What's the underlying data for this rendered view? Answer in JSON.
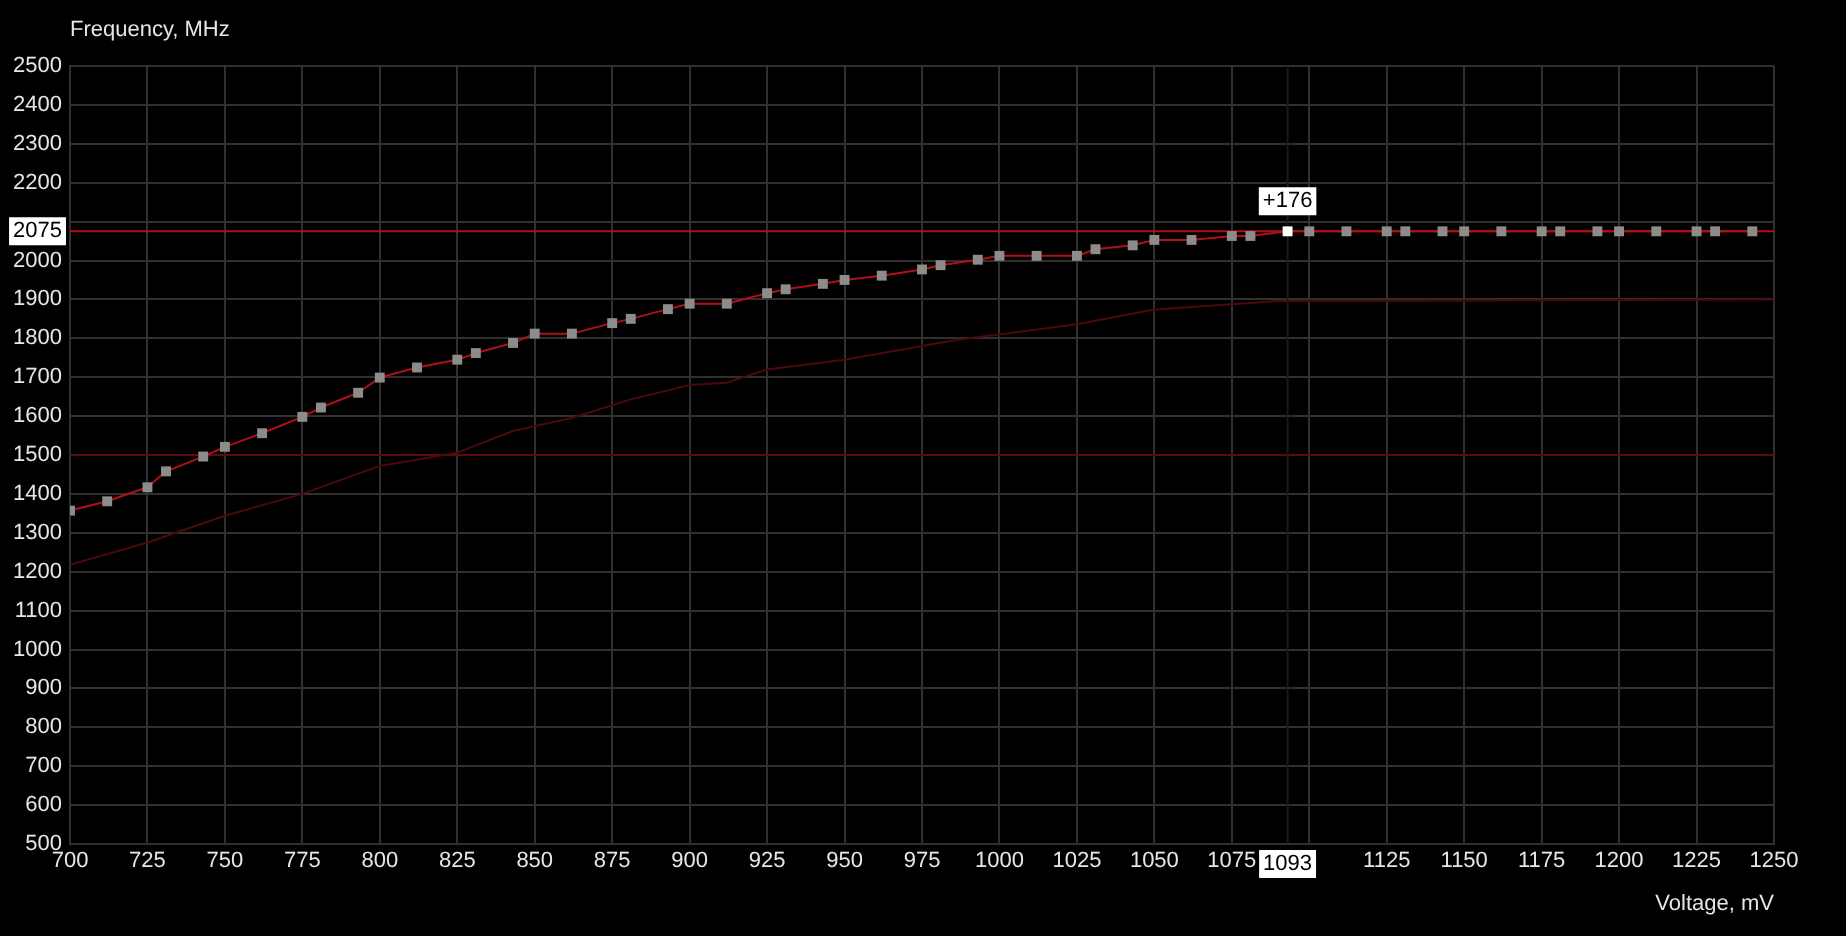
{
  "chart_data": {
    "type": "line",
    "xlabel": "Voltage, mV",
    "ylabel": "Frequency, MHz",
    "xlim": [
      700,
      1250
    ],
    "xticks": [
      700,
      725,
      750,
      775,
      800,
      825,
      850,
      875,
      900,
      925,
      950,
      975,
      1000,
      1025,
      1050,
      1075,
      {
        "value": 1100,
        "label": null
      },
      1125,
      1150,
      1175,
      1200,
      1225,
      1250
    ],
    "ylim": [
      500,
      2500
    ],
    "yticks": [
      500,
      600,
      700,
      800,
      900,
      1000,
      1100,
      1200,
      1300,
      1400,
      1500,
      1600,
      1700,
      1800,
      1900,
      2000,
      {
        "value": 2100,
        "label": null
      },
      2200,
      2300,
      2400,
      2500
    ],
    "grid": true,
    "legend": false,
    "series": [
      {
        "color": "#4a0a0c",
        "marker": "none",
        "x": [
          700,
          725,
          750,
          775,
          800,
          825,
          843,
          862,
          881,
          900,
          912,
          925,
          950,
          975,
          987,
          1025,
          1050,
          1090,
          1250
        ],
        "values": [
          1218,
          1275,
          1344,
          1400,
          1472,
          1506,
          1562,
          1595,
          1643,
          1680,
          1686,
          1720,
          1745,
          1780,
          1797,
          1836,
          1874,
          1896,
          1900
        ]
      },
      {
        "color": "#b01018",
        "marker": "square",
        "x": [
          700,
          712,
          725,
          731,
          743,
          750,
          762,
          775,
          781,
          793,
          800,
          812,
          825,
          831,
          843,
          850,
          862,
          875,
          881,
          893,
          900,
          912,
          925,
          931,
          943,
          950,
          962,
          975,
          981,
          993,
          1000,
          1012,
          1025,
          1031,
          1043,
          1050,
          1062,
          1075,
          1081,
          1093,
          1100,
          1112,
          1125,
          1131,
          1143,
          1150,
          1162,
          1175,
          1181,
          1193,
          1200,
          1212,
          1225,
          1231,
          1243
        ],
        "values": [
          1357,
          1381,
          1417,
          1458,
          1496,
          1521,
          1556,
          1598,
          1622,
          1660,
          1699,
          1725,
          1745,
          1762,
          1788,
          1812,
          1812,
          1839,
          1850,
          1875,
          1889,
          1889,
          1916,
          1926,
          1940,
          1950,
          1961,
          1977,
          1988,
          2002,
          2012,
          2012,
          2012,
          2029,
          2039,
          2053,
          2053,
          2063,
          2063,
          2075,
          2075,
          2075,
          2075,
          2075,
          2075,
          2075,
          2075,
          2075,
          2075,
          2075,
          2075,
          2075,
          2075,
          2075,
          2075
        ]
      }
    ],
    "ref_lines": [
      {
        "axis": "y",
        "value": 1500,
        "color": "#5a0c0e"
      },
      {
        "axis": "y",
        "value": 2075,
        "label": "2075",
        "color": "#b01018"
      },
      {
        "axis": "x",
        "value": 1093,
        "label": "1093",
        "color": "#1a1a1a"
      }
    ],
    "annotations": [
      {
        "text": "+176",
        "x": 1093,
        "y": 2075
      }
    ]
  }
}
